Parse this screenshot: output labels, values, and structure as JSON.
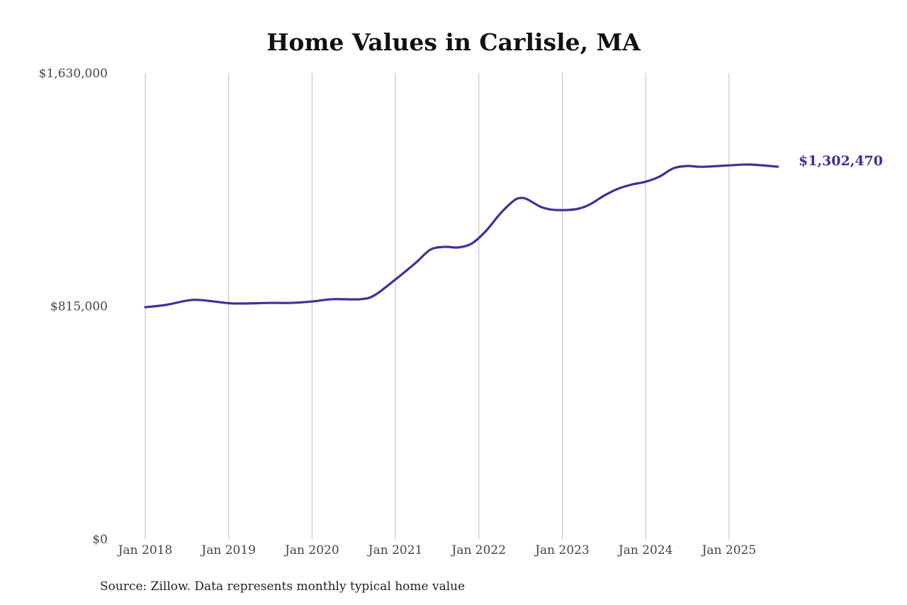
{
  "chart_data": {
    "type": "line",
    "title": "Home Values in Carlisle, MA",
    "xlabel": "",
    "ylabel": "",
    "ylim": [
      0,
      1630000
    ],
    "y_ticks": [
      "$0",
      "$815,000",
      "$1,630,000"
    ],
    "y_tick_values": [
      0,
      815000,
      1630000
    ],
    "x_ticks": [
      "Jan 2018",
      "Jan 2019",
      "Jan 2020",
      "Jan 2021",
      "Jan 2022",
      "Jan 2023",
      "Jan 2024",
      "Jan 2025"
    ],
    "grid": "vertical lines at each January",
    "line_color": "#3a3399",
    "end_label": "$1,302,470",
    "series": [
      {
        "x": [
          "2018-01",
          "2018-04",
          "2018-07",
          "2018-09",
          "2019-01",
          "2019-03",
          "2019-07",
          "2019-10",
          "2020-01",
          "2020-04",
          "2020-08",
          "2020-10",
          "2021-01",
          "2021-04",
          "2021-06",
          "2021-08",
          "2021-10",
          "2021-12",
          "2022-02",
          "2022-04",
          "2022-06",
          "2022-07",
          "2022-08",
          "2022-10",
          "2022-12",
          "2023-03",
          "2023-05",
          "2023-07",
          "2023-09",
          "2023-11",
          "2024-01",
          "2024-03",
          "2024-05",
          "2024-07",
          "2024-09",
          "2025-01",
          "2025-04",
          "2025-08"
        ],
        "values": [
          811000,
          819000,
          834000,
          836000,
          825000,
          824000,
          826000,
          826000,
          831000,
          839000,
          839000,
          853000,
          908000,
          968000,
          1012000,
          1022000,
          1020000,
          1034000,
          1077000,
          1136000,
          1183000,
          1193000,
          1188000,
          1161000,
          1151000,
          1154000,
          1171000,
          1201000,
          1225000,
          1240000,
          1250000,
          1268000,
          1297000,
          1305000,
          1302000,
          1307000,
          1310000,
          1302470
        ]
      }
    ]
  },
  "source": "Source: Zillow. Data represents monthly typical home value"
}
